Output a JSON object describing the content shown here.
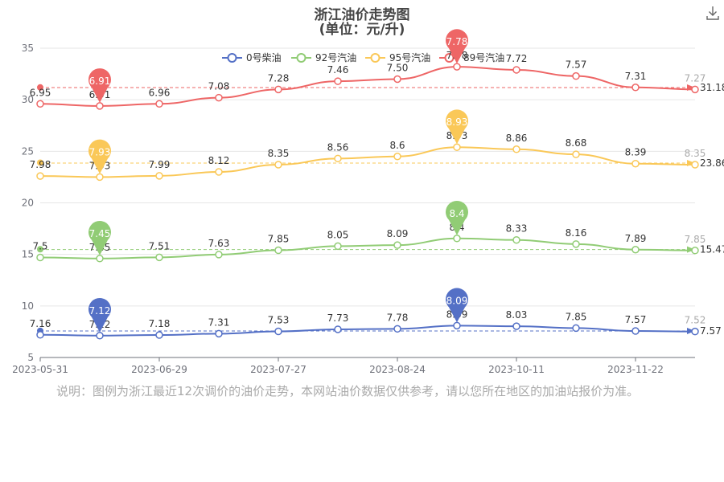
{
  "title": "浙江油价走势图",
  "subtitle": "(单位：元/升)",
  "note": "说明：图例为浙江最近12次调价的油价走势，本网站油价数据仅供参考，请以您所在地区的加油站报价为准。",
  "download_icon": "download-icon",
  "chart_data": {
    "type": "line",
    "ylim": [
      5,
      35
    ],
    "yticks": [
      5,
      10,
      15,
      20,
      25,
      30,
      35
    ],
    "xtick_labels": [
      "2023-05-31",
      "2023-06-29",
      "2023-07-27",
      "2023-08-24",
      "2023-10-11",
      "2023-11-22"
    ],
    "legend_position": "top-center",
    "grid": true,
    "series": [
      {
        "name": "0号柴油",
        "color": "#5470c6",
        "labels": [
          "7.16",
          "7.12",
          "7.18",
          "7.31",
          "7.53",
          "7.73",
          "7.78",
          "8.09",
          "8.03",
          "7.85",
          "7.57",
          "7.52"
        ],
        "plotted": [
          7.2,
          7.12,
          7.18,
          7.31,
          7.53,
          7.73,
          7.78,
          8.09,
          8.03,
          7.85,
          7.57,
          7.52
        ],
        "max": {
          "label": "8.09",
          "index": 7
        },
        "min": {
          "label": "7.12",
          "index": 1
        },
        "average": {
          "value": 7.57,
          "label": "7.57"
        },
        "first_mark": 7.58
      },
      {
        "name": "92号汽油",
        "color": "#91cc75",
        "labels": [
          "7.5",
          "7.45",
          "7.51",
          "7.63",
          "7.85",
          "8.05",
          "8.09",
          "8.4",
          "8.33",
          "8.16",
          "7.89",
          "7.85"
        ],
        "plotted": [
          14.7,
          14.6,
          14.71,
          14.98,
          15.4,
          15.8,
          15.9,
          16.55,
          16.4,
          16.0,
          15.46,
          15.38
        ],
        "max": {
          "label": "8.4",
          "index": 7
        },
        "min": {
          "label": "7.45",
          "index": 1
        },
        "average": {
          "value": 15.47,
          "label": "15.47"
        },
        "first_mark": 15.5
      },
      {
        "name": "95号汽油",
        "color": "#fac858",
        "labels": [
          "7.98",
          "7.93",
          "7.99",
          "8.12",
          "8.35",
          "8.56",
          "8.6",
          "8.93",
          "8.86",
          "8.68",
          "8.39",
          "8.35"
        ],
        "plotted": [
          22.6,
          22.5,
          22.62,
          23.0,
          23.7,
          24.3,
          24.5,
          25.4,
          25.2,
          24.7,
          23.8,
          23.7
        ],
        "max": {
          "label": "8.93",
          "index": 7
        },
        "min": {
          "label": "7.93",
          "index": 1
        },
        "average": {
          "value": 23.86,
          "label": "23.86"
        },
        "first_mark": 23.9
      },
      {
        "name": "89号汽油",
        "color": "#ee6666",
        "labels": [
          "6.95",
          "6.91",
          "6.96",
          "7.08",
          "7.28",
          "7.46",
          "7.50",
          "7.78",
          "7.72",
          "7.57",
          "7.31",
          "7.27"
        ],
        "plotted": [
          29.6,
          29.4,
          29.6,
          30.2,
          31.0,
          31.8,
          32.0,
          33.2,
          32.9,
          32.3,
          31.2,
          31.0
        ],
        "max": {
          "label": "7.78",
          "index": 7
        },
        "min": {
          "label": "6.91",
          "index": 1
        },
        "average": {
          "value": 31.18,
          "label": "31.18"
        },
        "first_mark": 31.2
      }
    ]
  }
}
